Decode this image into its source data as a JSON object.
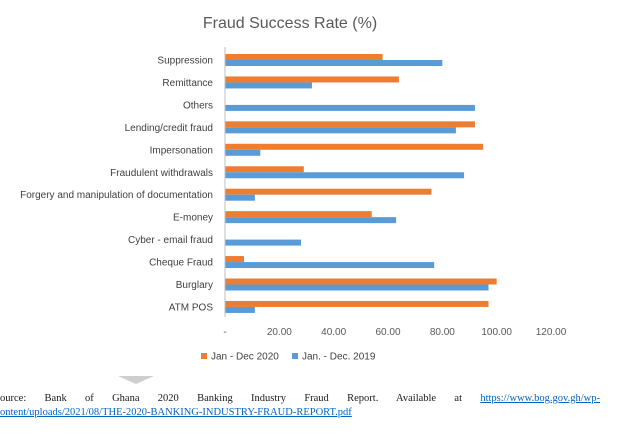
{
  "colors": {
    "series_2020": "#ed7d31",
    "series_2019": "#5b9bd5",
    "link": "#0563c1"
  },
  "chart_data": {
    "type": "bar",
    "orientation": "horizontal",
    "title": "Fraud Success Rate  (%)",
    "categories": [
      "Suppression",
      "Remittance",
      "Others",
      "Lending/credit fraud",
      "Impersonation",
      "Fraudulent withdrawals",
      "Forgery and manipulation of documentation",
      "E-money",
      "Cyber - email fraud",
      "Cheque Fraud",
      "Burglary",
      "ATM POS"
    ],
    "series": [
      {
        "name": "Jan - Dec 2020",
        "values": [
          58,
          64,
          0,
          92,
          95,
          29,
          76,
          54,
          0,
          7,
          100,
          97
        ]
      },
      {
        "name": "Jan. - Dec. 2019",
        "values": [
          80,
          32,
          92,
          85,
          13,
          88,
          11,
          63,
          28,
          77,
          97,
          11
        ]
      }
    ],
    "xticks": [
      "-",
      "20.00",
      "40.00",
      "60.00",
      "80.00",
      "100.00",
      "120.00"
    ],
    "xlim": [
      0,
      120
    ],
    "grid": false,
    "legend": "bottom"
  },
  "caption": {
    "line1_text": "ource: Bank of Ghana 2020 Banking Industry Fraud Report. Available at",
    "line1_link": "https://www.bog.gov.gh/wp-",
    "line2_link": "ontent/uploads/2021/08/THE-2020-BANKING-INDUSTRY-FRAUD-REPORT.pdf"
  }
}
